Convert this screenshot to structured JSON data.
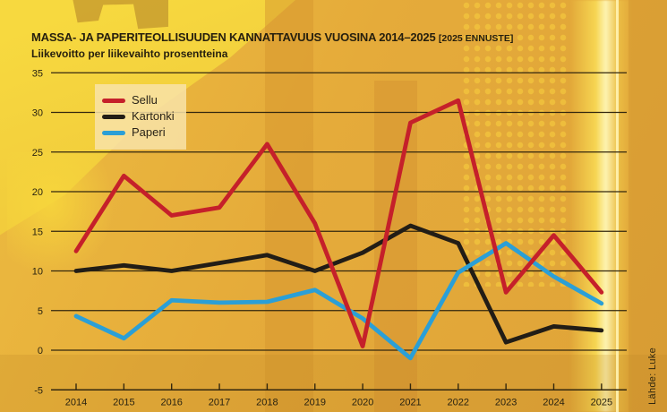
{
  "header": {
    "title": "MASSA- JA PAPERITEOLLISUUDEN KANNATTAVUUS VUOSINA 2014–2025",
    "title_note": "[2025 ENNUSTE]",
    "subtitle": "Liikevoitto per liikevaihto prosentteina"
  },
  "source": "Lähde: Luke",
  "colors": {
    "background": "#e3aa3d",
    "bright_yellow": "#f7d93f",
    "grid": "#33270e",
    "text": "#2a2310",
    "legend_background": "rgba(248,227,168,0.85)",
    "sellu_red": "#c5202a",
    "kartonki_black": "#221d16",
    "paperi_blue": "#2b9fd6"
  },
  "chart_data": {
    "type": "line",
    "title": "MASSA- JA PAPERITEOLLISUUDEN KANNATTAVUUS VUOSINA 2014–2025 (2025 ennuste)",
    "subtitle": "Liikevoitto per liikevaihto prosentteina",
    "xlabel": "",
    "ylabel": "Liikevoitto per liikevaihto, %",
    "categories": [
      "2014",
      "2015",
      "2016",
      "2017",
      "2018",
      "2019",
      "2020",
      "2021",
      "2022",
      "2023",
      "2024",
      "2025"
    ],
    "series": [
      {
        "name": "Sellu",
        "color": "#c5202a",
        "values": [
          12.5,
          22,
          17,
          18,
          26,
          16,
          0.5,
          28.7,
          31.5,
          7.3,
          14.5,
          7.3
        ]
      },
      {
        "name": "Kartonki",
        "color": "#221d16",
        "values": [
          10,
          10.7,
          10,
          11,
          12,
          10,
          12.3,
          15.7,
          13.5,
          1,
          3,
          2.5
        ]
      },
      {
        "name": "Paperi",
        "color": "#2b9fd6",
        "values": [
          4.3,
          1.5,
          6.3,
          6,
          6.1,
          7.6,
          4,
          -1,
          9.8,
          13.5,
          9.3,
          5.9
        ]
      }
    ],
    "ylim": [
      -5,
      35
    ],
    "yticks": [
      -5,
      0,
      5,
      10,
      15,
      20,
      25,
      30,
      35
    ],
    "grid": true,
    "legend_position": "top-left",
    "draw_order": [
      "Kartonki",
      "Paperi",
      "Sellu"
    ]
  }
}
